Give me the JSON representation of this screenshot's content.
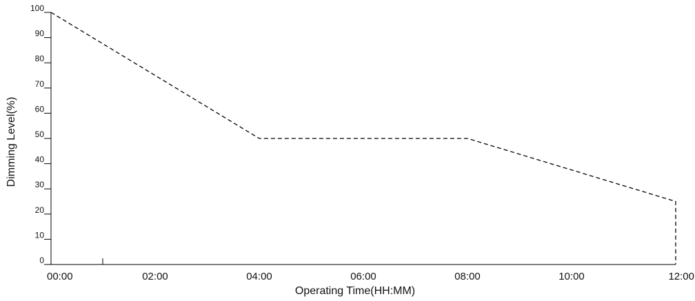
{
  "chart_data": {
    "type": "line",
    "title": "",
    "xlabel": "Operating Time(HH:MM)",
    "ylabel": "Dimming Level(%)",
    "x_tick_labels": [
      "00:00",
      "02:00",
      "04:00",
      "06:00",
      "08:00",
      "10:00",
      "12:00"
    ],
    "y_tick_labels": [
      "0",
      "10",
      "20",
      "30",
      "40",
      "50",
      "60",
      "70",
      "80",
      "90",
      "100"
    ],
    "xlim": [
      "00:00",
      "12:00"
    ],
    "ylim": [
      0,
      100
    ],
    "grid": false,
    "line_style": "dashed",
    "line_color": "#000000",
    "series": [
      {
        "x": [
          "00:00",
          "04:00",
          "08:00",
          "12:00",
          "12:00"
        ],
        "y": [
          100,
          50,
          50,
          25,
          0
        ]
      }
    ]
  }
}
